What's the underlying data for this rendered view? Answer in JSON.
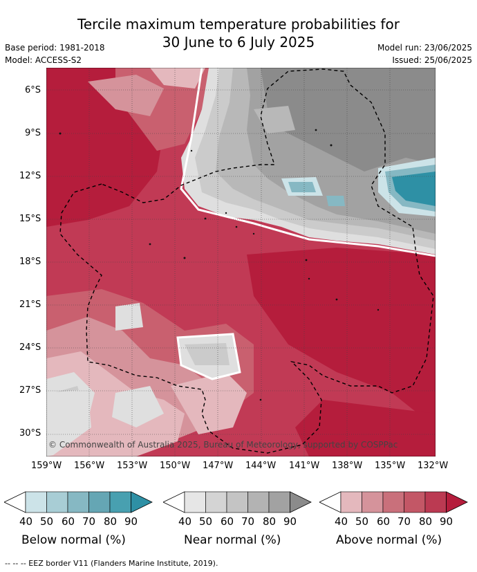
{
  "title_line1": "Tercile maximum temperature probabilities for",
  "title_line2": "30 June to 6 July 2025",
  "meta": {
    "base_period": "Base period: 1981-2018",
    "model": "Model: ACCESS-S2",
    "model_run": "Model run: 23/06/2025",
    "issued": "Issued: 25/06/2025"
  },
  "map": {
    "lat_labels": [
      "6°S",
      "9°S",
      "12°S",
      "15°S",
      "18°S",
      "21°S",
      "24°S",
      "27°S",
      "30°S"
    ],
    "lon_labels": [
      "159°W",
      "156°W",
      "153°W",
      "150°W",
      "147°W",
      "144°W",
      "141°W",
      "138°W",
      "135°W",
      "132°W"
    ],
    "copyright": "© Commonwealth of Australia 2025, Bureau of Meteorology, supported by COSPPac",
    "colors": {
      "above_90": "#b51d3c",
      "above_80": "#c13a55",
      "above_70": "#c9606f",
      "above_60": "#d5939b",
      "above_50": "#e4b8bd",
      "near_90": "#8b8b8b",
      "near_80": "#a2a2a2",
      "near_70": "#b8b8b8",
      "near_60": "#cbcbcb",
      "near_50": "#dfdfdf",
      "below_50": "#cce3e8",
      "below_60": "#a8cdd5",
      "below_70": "#86b8c3",
      "below_80": "#65a6b4",
      "below_90": "#2e90a5"
    }
  },
  "colorbars": [
    {
      "label": "Below normal (%)",
      "ticks": [
        "40",
        "50",
        "60",
        "70",
        "80",
        "90"
      ],
      "colors": [
        "#cce3e8",
        "#a8cdd5",
        "#86b8c3",
        "#65a6b4",
        "#48a0b0",
        "#2e90a5"
      ]
    },
    {
      "label": "Near normal (%)",
      "ticks": [
        "40",
        "50",
        "60",
        "70",
        "80",
        "90"
      ],
      "colors": [
        "#e6e6e6",
        "#d4d4d4",
        "#c4c4c4",
        "#b3b3b3",
        "#a2a2a2",
        "#8b8b8b"
      ]
    },
    {
      "label": "Above normal (%)",
      "ticks": [
        "40",
        "50",
        "60",
        "70",
        "80",
        "90"
      ],
      "colors": [
        "#e4b8bd",
        "#d5939b",
        "#c9707b",
        "#c35766",
        "#bb3a52",
        "#b51d3c"
      ]
    }
  ],
  "footer": "--  --  -- EEZ border V11 (Flanders Marine Institute, 2019)."
}
